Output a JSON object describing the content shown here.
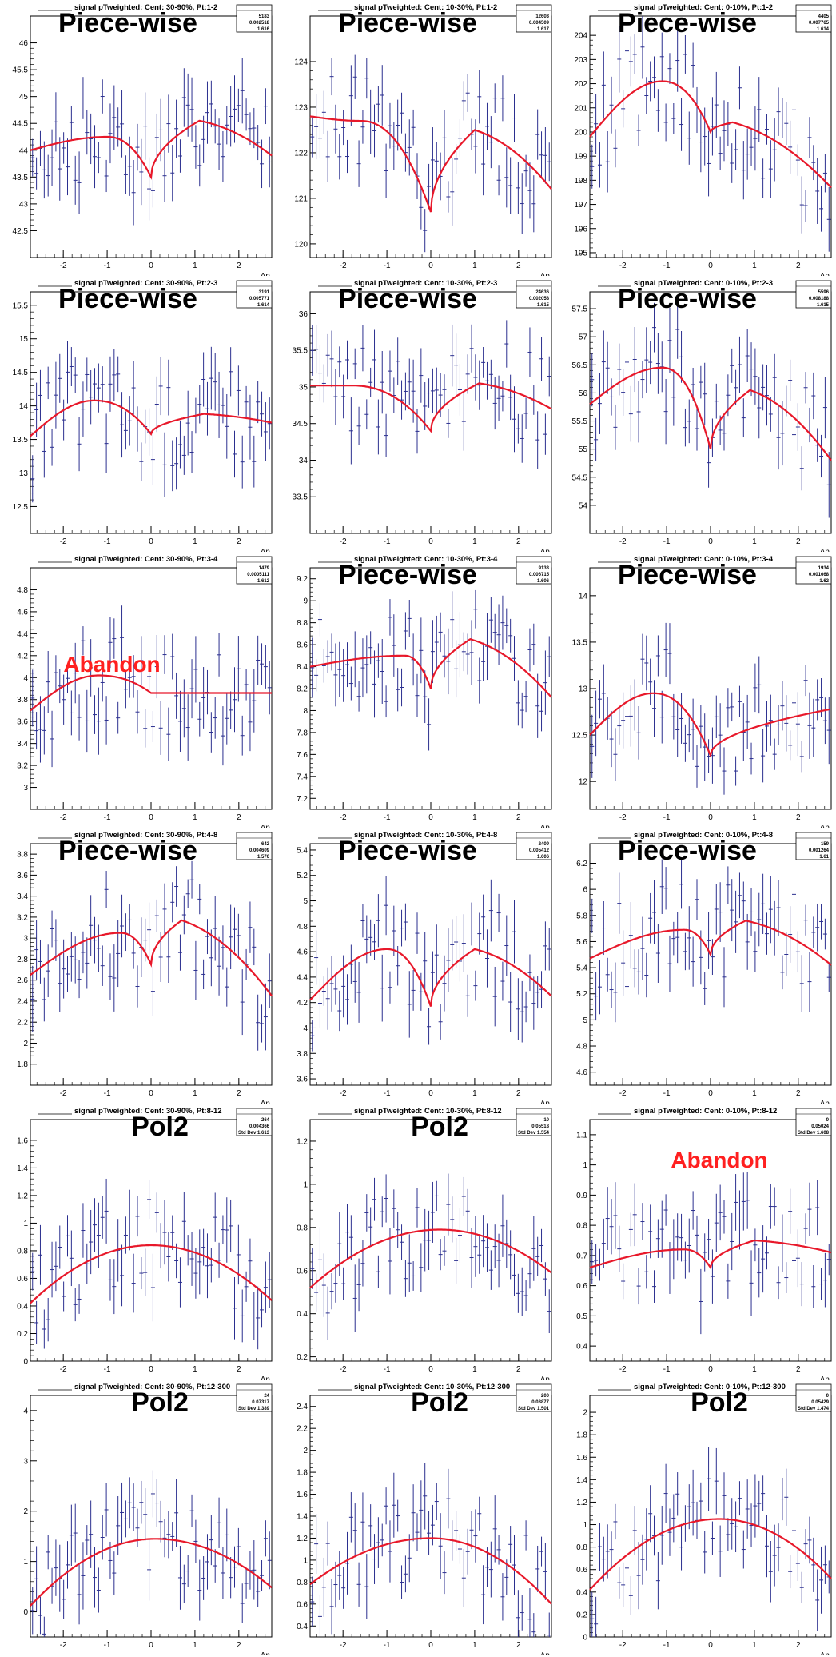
{
  "page": {
    "x_axis_label": "Δη",
    "overlay_colors": {
      "normal": "#000000",
      "abandon": "#ff2020"
    },
    "fit_color": "#e8182a",
    "point_color": "#2b2f8f"
  },
  "chart_data": [
    {
      "type": "scatter",
      "title": "signal pTweighted: Cent: 30-90%, Pt:1-2",
      "overlay": "Piece-wise",
      "overlay_style": "normal",
      "stats": [
        "5183",
        "0.002518",
        "1.616"
      ],
      "xlabel": "Δη",
      "xlim": [
        -2.75,
        2.75
      ],
      "ylim": [
        42.0,
        46.5
      ],
      "yticks": [
        "42.5",
        "43",
        "43.5",
        "44",
        "44.5",
        "45",
        "45.5",
        "46"
      ],
      "xticks": [
        "-2",
        "-1",
        "0",
        "1",
        "2"
      ],
      "fit": {
        "kind": "piecewise",
        "left": [
          44.0,
          44.25,
          -1.0
        ],
        "right": [
          43.9,
          44.55,
          1.1
        ],
        "center": 43.5
      }
    },
    {
      "type": "scatter",
      "title": "signal pTweighted: Cent: 10-30%, Pt:1-2",
      "overlay": "Piece-wise",
      "overlay_style": "normal",
      "stats": [
        "12603",
        "0.004509",
        "1.617"
      ],
      "xlabel": "Δη",
      "xlim": [
        -2.75,
        2.75
      ],
      "ylim": [
        119.7,
        125.0
      ],
      "yticks": [
        "120",
        "121",
        "122",
        "123",
        "124"
      ],
      "xticks": [
        "-2",
        "-1",
        "0",
        "1",
        "2"
      ],
      "fit": {
        "kind": "piecewise",
        "left": [
          122.8,
          122.7,
          -1.6
        ],
        "right": [
          121.2,
          122.5,
          1.0
        ],
        "center": 120.7
      }
    },
    {
      "type": "scatter",
      "title": "signal pTweighted: Cent: 0-10%, Pt:1-2",
      "overlay": "Piece-wise",
      "overlay_style": "normal",
      "stats": [
        "4405",
        "0.007765",
        "1.614"
      ],
      "xlabel": "Δη",
      "xlim": [
        -2.75,
        2.75
      ],
      "ylim": [
        194.8,
        204.8
      ],
      "yticks": [
        "195",
        "196",
        "197",
        "198",
        "199",
        "200",
        "201",
        "202",
        "203",
        "204"
      ],
      "xticks": [
        "-2",
        "-1",
        "0",
        "1",
        "2"
      ],
      "fit": {
        "kind": "piecewise",
        "left": [
          199.8,
          202.1,
          -1.1
        ],
        "right": [
          197.7,
          200.4,
          0.5
        ],
        "center": 200.0
      }
    },
    {
      "type": "scatter",
      "title": "signal pTweighted: Cent: 30-90%, Pt:2-3",
      "overlay": "Piece-wise",
      "overlay_style": "normal",
      "stats": [
        "3191",
        "0.005771",
        "1.614"
      ],
      "xlabel": "Δη",
      "xlim": [
        -2.75,
        2.75
      ],
      "ylim": [
        12.1,
        15.7
      ],
      "yticks": [
        "12.5",
        "13",
        "13.5",
        "14",
        "14.5",
        "15",
        "15.5"
      ],
      "xticks": [
        "-2",
        "-1",
        "0",
        "1",
        "2"
      ],
      "fit": {
        "kind": "piecewise",
        "left": [
          13.55,
          14.08,
          -1.3
        ],
        "right": [
          13.75,
          13.88,
          1.2
        ],
        "center": 13.58
      }
    },
    {
      "type": "scatter",
      "title": "signal pTweighted: Cent: 10-30%, Pt:2-3",
      "overlay": "Piece-wise",
      "overlay_style": "normal",
      "stats": [
        "24636",
        "0.002058",
        "1.615"
      ],
      "xlabel": "Δη",
      "xlim": [
        -2.75,
        2.75
      ],
      "ylim": [
        33.0,
        36.3
      ],
      "yticks": [
        "33.5",
        "34",
        "34.5",
        "35",
        "35.5",
        "36"
      ],
      "xticks": [
        "-2",
        "-1",
        "0",
        "1",
        "2"
      ],
      "fit": {
        "kind": "piecewise",
        "left": [
          35.02,
          35.02,
          -1.8
        ],
        "right": [
          34.7,
          35.05,
          1.1
        ],
        "center": 34.4
      }
    },
    {
      "type": "scatter",
      "title": "signal pTweighted: Cent: 0-10%, Pt:2-3",
      "overlay": "Piece-wise",
      "overlay_style": "normal",
      "stats": [
        "5596",
        "0.008188",
        "1.615"
      ],
      "xlabel": "Δη",
      "xlim": [
        -2.75,
        2.75
      ],
      "ylim": [
        53.5,
        57.8
      ],
      "yticks": [
        "54",
        "54.5",
        "55",
        "55.5",
        "56",
        "56.5",
        "57",
        "57.5"
      ],
      "xticks": [
        "-2",
        "-1",
        "0",
        "1",
        "2"
      ],
      "fit": {
        "kind": "piecewise",
        "left": [
          55.8,
          56.45,
          -1.1
        ],
        "right": [
          54.8,
          56.05,
          0.9
        ],
        "center": 55.0
      }
    },
    {
      "type": "scatter",
      "title": "signal pTweighted: Cent: 30-90%, Pt:3-4",
      "overlay": "Abandon",
      "overlay_style": "abandon",
      "stats": [
        "1479",
        "0.0005111",
        "1.612"
      ],
      "xlabel": "Δη",
      "xlim": [
        -2.75,
        2.75
      ],
      "ylim": [
        2.8,
        5.0
      ],
      "yticks": [
        "3",
        "3.2",
        "3.4",
        "3.6",
        "3.8",
        "4",
        "4.2",
        "4.4",
        "4.6",
        "4.8"
      ],
      "xticks": [
        "-2",
        "-1",
        "0",
        "1",
        "2"
      ],
      "fit": {
        "kind": "piecewise",
        "left": [
          3.7,
          4.02,
          -1.2
        ],
        "right": [
          3.86,
          3.86,
          0.8
        ],
        "center": 3.86
      }
    },
    {
      "type": "scatter",
      "title": "signal pTweighted: Cent: 10-30%, Pt:3-4",
      "overlay": "Piece-wise",
      "overlay_style": "normal",
      "stats": [
        "9133",
        "0.006715",
        "1.606"
      ],
      "xlabel": "Δη",
      "xlim": [
        -2.75,
        2.75
      ],
      "ylim": [
        7.1,
        9.3
      ],
      "yticks": [
        "7.2",
        "7.4",
        "7.6",
        "7.8",
        "8",
        "8.2",
        "8.4",
        "8.6",
        "8.8",
        "9",
        "9.2"
      ],
      "xticks": [
        "-2",
        "-1",
        "0",
        "1",
        "2"
      ],
      "fit": {
        "kind": "piecewise",
        "left": [
          8.4,
          8.5,
          -0.6
        ],
        "right": [
          8.12,
          8.65,
          0.9
        ],
        "center": 8.2
      }
    },
    {
      "type": "scatter",
      "title": "signal pTweighted: Cent: 0-10%, Pt:3-4",
      "overlay": "Piece-wise",
      "overlay_style": "normal",
      "stats": [
        "1934",
        "0.001668",
        "1.62"
      ],
      "xlabel": "Δη",
      "xlim": [
        -2.75,
        2.75
      ],
      "ylim": [
        11.7,
        14.3
      ],
      "yticks": [
        "12",
        "12.5",
        "13",
        "13.5",
        "14"
      ],
      "xticks": [
        "-2",
        "-1",
        "0",
        "1",
        "2"
      ],
      "fit": {
        "kind": "piecewise",
        "left": [
          12.5,
          12.95,
          -1.3
        ],
        "right": [
          12.78,
          12.78,
          2.75
        ],
        "center": 12.28
      }
    },
    {
      "type": "scatter",
      "title": "signal pTweighted: Cent: 30-90%, Pt:4-8",
      "overlay": "Piece-wise",
      "overlay_style": "normal",
      "stats": [
        "642",
        "0.004609",
        "1.576"
      ],
      "xlabel": "Δη",
      "xlim": [
        -2.75,
        2.75
      ],
      "ylim": [
        1.6,
        3.9
      ],
      "yticks": [
        "1.8",
        "2",
        "2.2",
        "2.4",
        "2.6",
        "2.8",
        "3",
        "3.2",
        "3.4",
        "3.6",
        "3.8"
      ],
      "xticks": [
        "-2",
        "-1",
        "0",
        "1",
        "2"
      ],
      "fit": {
        "kind": "piecewise",
        "left": [
          2.65,
          3.05,
          -0.7
        ],
        "right": [
          2.45,
          3.17,
          0.7
        ],
        "center": 2.75
      }
    },
    {
      "type": "scatter",
      "title": "signal pTweighted: Cent: 10-30%, Pt:4-8",
      "overlay": "Piece-wise",
      "overlay_style": "normal",
      "stats": [
        "2409",
        "0.005412",
        "1.606"
      ],
      "xlabel": "Δη",
      "xlim": [
        -2.75,
        2.75
      ],
      "ylim": [
        3.55,
        5.45
      ],
      "yticks": [
        "3.6",
        "3.8",
        "4",
        "4.2",
        "4.4",
        "4.6",
        "4.8",
        "5",
        "5.2",
        "5.4"
      ],
      "xticks": [
        "-2",
        "-1",
        "0",
        "1",
        "2"
      ],
      "fit": {
        "kind": "piecewise",
        "left": [
          4.22,
          4.62,
          -1.0
        ],
        "right": [
          4.25,
          4.62,
          1.0
        ],
        "center": 4.17
      }
    },
    {
      "type": "scatter",
      "title": "signal pTweighted: Cent: 0-10%, Pt:4-8",
      "overlay": "Piece-wise",
      "overlay_style": "normal",
      "stats": [
        "159",
        "0.001264",
        "1.61"
      ],
      "xlabel": "Δη",
      "xlim": [
        -2.75,
        2.75
      ],
      "ylim": [
        4.5,
        6.35
      ],
      "yticks": [
        "4.6",
        "4.8",
        "5",
        "5.2",
        "5.4",
        "5.6",
        "5.8",
        "6",
        "6.2"
      ],
      "xticks": [
        "-2",
        "-1",
        "0",
        "1",
        "2"
      ],
      "fit": {
        "kind": "piecewise",
        "left": [
          5.47,
          5.69,
          -0.6
        ],
        "right": [
          5.42,
          5.76,
          0.8
        ],
        "center": 5.5
      }
    },
    {
      "type": "scatter",
      "title": "signal pTweighted: Cent: 30-90%, Pt:8-12",
      "overlay": "Pol2",
      "overlay_style": "normal",
      "stats": [
        "264",
        "0.004366",
        "1.613"
      ],
      "stats_labels": [
        "",
        "",
        "Std Dev"
      ],
      "xlabel": "Δη",
      "xlim": [
        -2.75,
        2.75
      ],
      "ylim": [
        0,
        1.75
      ],
      "yticks": [
        "0",
        "0.2",
        "0.4",
        "0.6",
        "0.8",
        "1",
        "1.2",
        "1.4",
        "1.6"
      ],
      "xticks": [
        "-2",
        "-1",
        "0",
        "1",
        "2"
      ],
      "fit": {
        "kind": "pol2",
        "ends": [
          0.42,
          0.44
        ],
        "peak": [
          0.0,
          0.84
        ]
      }
    },
    {
      "type": "scatter",
      "title": "signal pTweighted: Cent: 10-30%, Pt:8-12",
      "overlay": "Pol2",
      "overlay_style": "normal",
      "stats": [
        "10",
        "0.05518",
        "1.554"
      ],
      "stats_labels": [
        "",
        "",
        "Std Dev"
      ],
      "xlabel": "Δη",
      "xlim": [
        -2.75,
        2.75
      ],
      "ylim": [
        0.18,
        1.3
      ],
      "yticks": [
        "0.2",
        "0.4",
        "0.6",
        "0.8",
        "1",
        "1.2"
      ],
      "xticks": [
        "-2",
        "-1",
        "0",
        "1",
        "2"
      ],
      "fit": {
        "kind": "pol2",
        "ends": [
          0.52,
          0.59
        ],
        "peak": [
          0.2,
          0.79
        ]
      }
    },
    {
      "type": "scatter",
      "title": "signal pTweighted: Cent: 0-10%, Pt:8-12",
      "overlay": "Abandon",
      "overlay_style": "abandon",
      "stats": [
        "0",
        "0.05024",
        "1.608"
      ],
      "stats_labels": [
        "",
        "",
        "Std Dev"
      ],
      "xlabel": "Δη",
      "xlim": [
        -2.75,
        2.75
      ],
      "ylim": [
        0.35,
        1.15
      ],
      "yticks": [
        "0.4",
        "0.5",
        "0.6",
        "0.7",
        "0.8",
        "0.9",
        "1",
        "1.1"
      ],
      "xticks": [
        "-2",
        "-1",
        "0",
        "1",
        "2"
      ],
      "fit": {
        "kind": "piecewise",
        "left": [
          0.66,
          0.72,
          -0.6
        ],
        "right": [
          0.71,
          0.75,
          1.0
        ],
        "center": 0.66
      }
    },
    {
      "type": "scatter",
      "title": "signal pTweighted: Cent: 30-90%, Pt:12-300",
      "overlay": "Pol2",
      "overlay_style": "normal",
      "stats": [
        "24",
        "0.07317",
        "1.389"
      ],
      "stats_labels": [
        "",
        "",
        "Std Dev"
      ],
      "xlabel": "Δη",
      "xlim": [
        -2.75,
        2.75
      ],
      "ylim": [
        -0.5,
        4.3
      ],
      "yticks": [
        "0",
        "1",
        "2",
        "3",
        "4"
      ],
      "xticks": [
        "-2",
        "-1",
        "0",
        "1",
        "2"
      ],
      "fit": {
        "kind": "pol2",
        "ends": [
          0.12,
          0.48
        ],
        "peak": [
          0.1,
          1.45
        ]
      }
    },
    {
      "type": "scatter",
      "title": "signal pTweighted: Cent: 10-30%, Pt:12-300",
      "overlay": "Pol2",
      "overlay_style": "normal",
      "stats": [
        "200",
        "0.03877",
        "1.501"
      ],
      "stats_labels": [
        "",
        "",
        "Std Dev"
      ],
      "xlabel": "Δη",
      "xlim": [
        -2.75,
        2.75
      ],
      "ylim": [
        0.3,
        2.5
      ],
      "yticks": [
        "0.4",
        "0.6",
        "0.8",
        "1",
        "1.2",
        "1.4",
        "1.6",
        "1.8",
        "2",
        "2.2",
        "2.4"
      ],
      "xticks": [
        "-2",
        "-1",
        "0",
        "1",
        "2"
      ],
      "fit": {
        "kind": "pol2",
        "ends": [
          0.78,
          0.6
        ],
        "peak": [
          0.0,
          1.2
        ]
      }
    },
    {
      "type": "scatter",
      "title": "signal pTweighted: Cent: 0-10%, Pt:12-300",
      "overlay": "Pol2",
      "overlay_style": "normal",
      "stats": [
        "0",
        "0.05429",
        "1.474"
      ],
      "stats_labels": [
        "",
        "",
        "Std Dev"
      ],
      "xlabel": "Δη",
      "xlim": [
        -2.75,
        2.75
      ],
      "ylim": [
        0,
        2.15
      ],
      "yticks": [
        "0",
        "0.2",
        "0.4",
        "0.6",
        "0.8",
        "1",
        "1.2",
        "1.4",
        "1.6",
        "1.8",
        "2"
      ],
      "xticks": [
        "-2",
        "-1",
        "0",
        "1",
        "2"
      ],
      "fit": {
        "kind": "pol2",
        "ends": [
          0.42,
          0.52
        ],
        "peak": [
          0.2,
          1.05
        ]
      }
    }
  ]
}
